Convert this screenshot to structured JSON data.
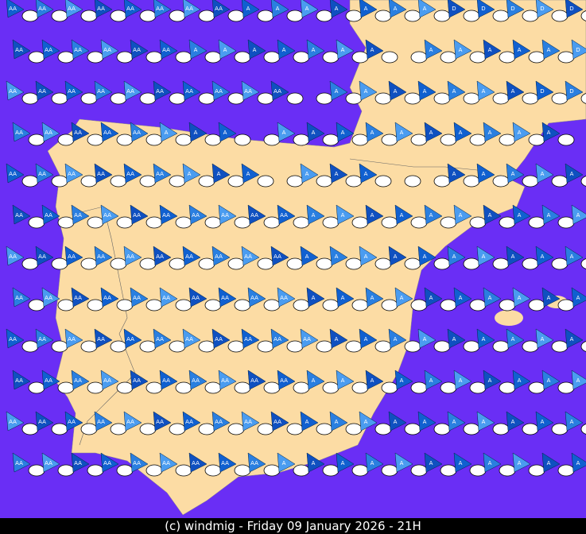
{
  "rows": [
    [
      "AA",
      "AA",
      "AA",
      "AA",
      "AA",
      "AA",
      "AA",
      "AA",
      "A",
      "A",
      "A",
      "A",
      "A",
      "A",
      "A",
      "D",
      "D",
      "D",
      "D",
      "D"
    ],
    [
      "AA",
      "AA",
      "AA",
      "AA",
      "AA",
      "AA",
      "A",
      "A",
      "A",
      "A",
      "A",
      "A",
      "A",
      null,
      "A",
      "A",
      "A",
      "A",
      "A",
      "D"
    ],
    [
      "AA",
      "AA",
      "AA",
      "AA",
      "AA",
      "AA",
      "AA",
      "AA",
      "AA",
      "AA",
      null,
      "A",
      "A",
      "A",
      "A",
      "A",
      "A",
      "A",
      "D",
      "D"
    ],
    [
      "AA",
      "AA",
      "AA",
      "AA",
      "AA",
      "A",
      "A",
      "A",
      null,
      "A",
      "A",
      "A",
      "A",
      "A",
      "A",
      "A",
      "A",
      "A",
      "A",
      null
    ],
    [
      "AA",
      "AA",
      "AA",
      "AA",
      "AA",
      "AA",
      "A",
      "A",
      "A",
      null,
      "A",
      "A",
      "A",
      null,
      null,
      "A",
      "A",
      "A",
      "A",
      "A"
    ],
    [
      "AA",
      "AA",
      "AA",
      "AA",
      "AA",
      "AA",
      "AA",
      "AA",
      "AA",
      "AA",
      "A",
      "A",
      "A",
      "A",
      "A",
      "A",
      "A",
      "A",
      "A",
      "A"
    ],
    [
      "AA",
      "AA",
      "AA",
      "AA",
      "AA",
      "AA",
      "AA",
      "AA",
      "AA",
      "AA",
      "A",
      "A",
      "A",
      "A",
      "A",
      "A",
      "A",
      "A",
      "A",
      "A"
    ],
    [
      "AA",
      "AA",
      "AA",
      "AA",
      "AA",
      "AA",
      "AA",
      "AA",
      "AA",
      "AA",
      "A",
      "A",
      "A",
      "A",
      "A",
      "A",
      "A",
      "A",
      "A",
      "A"
    ],
    [
      "AA",
      "AA",
      "AA",
      "AA",
      "AA",
      "AA",
      "AA",
      "AA",
      "AA",
      "AA",
      "AA",
      "A",
      "A",
      "A",
      "A",
      "A",
      "A",
      "A",
      "A",
      "A"
    ],
    [
      "AA",
      "AA",
      "AA",
      "AA",
      "AA",
      "AA",
      "AA",
      "AA",
      "AA",
      "AA",
      "A",
      "A",
      "A",
      "A",
      "A",
      "A",
      "A",
      "A",
      "A",
      "A"
    ],
    [
      "AA",
      "AA",
      "AA",
      "AA",
      "AA",
      "AA",
      "AA",
      "AA",
      "AA",
      "AA",
      "A",
      "A",
      "A",
      "A",
      "A",
      "A",
      "A",
      "A",
      "A",
      "A"
    ],
    [
      "AA",
      "AA",
      "AA",
      "AA",
      "AA",
      "AA",
      "AA",
      "AA",
      "AA",
      "A",
      "A",
      "A",
      "A",
      "A",
      "A",
      "A",
      "A",
      "A",
      "A",
      "A"
    ]
  ],
  "footer": "(c) windmig - Friday 09 January 2026 - 21H"
}
